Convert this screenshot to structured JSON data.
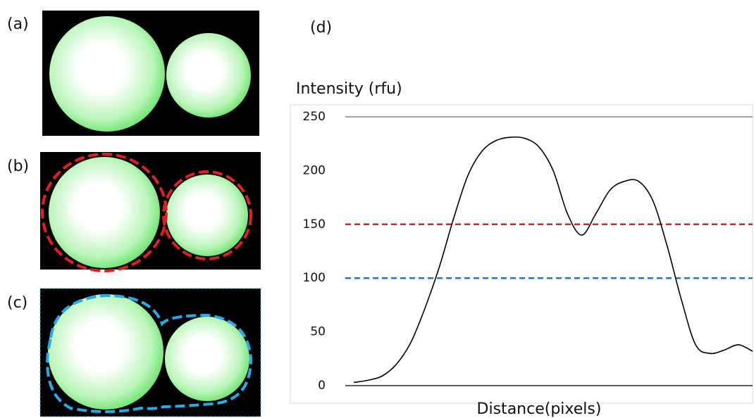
{
  "panels": [
    "(a)",
    "(b)",
    "(c)"
  ],
  "chart_data": {
    "type": "line",
    "label": "(d)",
    "ylabel": "Intensity (rfu)",
    "xlabel": "Distance(pixels)",
    "ylim": [
      0,
      250
    ],
    "yticks": [
      0,
      50,
      100,
      150,
      200,
      250
    ],
    "series": [
      {
        "color": "#000000",
        "values": [
          3,
          5,
          9,
          20,
          40,
          72,
          110,
          155,
          195,
          218,
          228,
          231,
          230,
          222,
          200,
          160,
          140,
          160,
          182,
          190,
          190,
          172,
          130,
          80,
          38,
          30,
          33,
          38,
          32
        ]
      }
    ],
    "thresholds": [
      {
        "value": 150,
        "color": "#e02020"
      },
      {
        "value": 100,
        "color": "#2e75b6"
      }
    ]
  }
}
